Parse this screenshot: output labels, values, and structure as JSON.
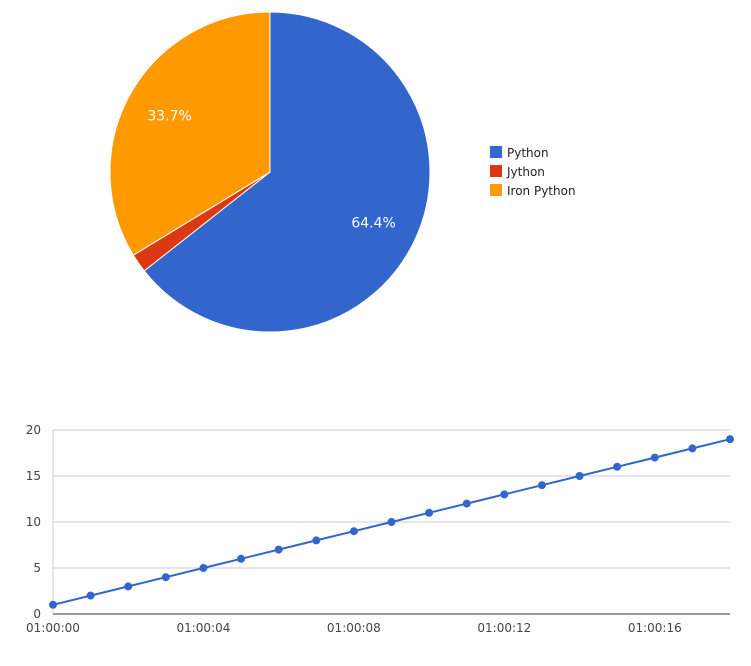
{
  "chart_data": [
    {
      "type": "pie",
      "slices": [
        {
          "label": "Python",
          "value": 64.4,
          "color": "#3366cc",
          "data_label": "64.4%"
        },
        {
          "label": "Jython",
          "value": 1.9,
          "color": "#dc3912",
          "data_label": ""
        },
        {
          "label": "Iron Python",
          "value": 33.7,
          "color": "#ff9900",
          "data_label": "33.7%"
        }
      ],
      "legend_position": "right"
    },
    {
      "type": "line",
      "series": [
        {
          "color": "#3366cc",
          "x": [
            "01:00:00",
            "01:00:01",
            "01:00:02",
            "01:00:03",
            "01:00:04",
            "01:00:05",
            "01:00:06",
            "01:00:07",
            "01:00:08",
            "01:00:09",
            "01:00:10",
            "01:00:11",
            "01:00:12",
            "01:00:13",
            "01:00:14",
            "01:00:15",
            "01:00:16",
            "01:00:17",
            "01:00:18"
          ],
          "values": [
            1,
            2,
            3,
            4,
            5,
            6,
            7,
            8,
            9,
            10,
            11,
            12,
            13,
            14,
            15,
            16,
            17,
            18,
            19
          ]
        }
      ],
      "x_ticks": [
        "01:00:00",
        "01:00:04",
        "01:00:08",
        "01:00:12",
        "01:00:16"
      ],
      "y_ticks": [
        0,
        5,
        10,
        15,
        20
      ],
      "ylim": [
        0,
        20
      ],
      "xlim": [
        "01:00:00",
        "01:00:18"
      ],
      "grid": true,
      "legend": "none"
    }
  ]
}
